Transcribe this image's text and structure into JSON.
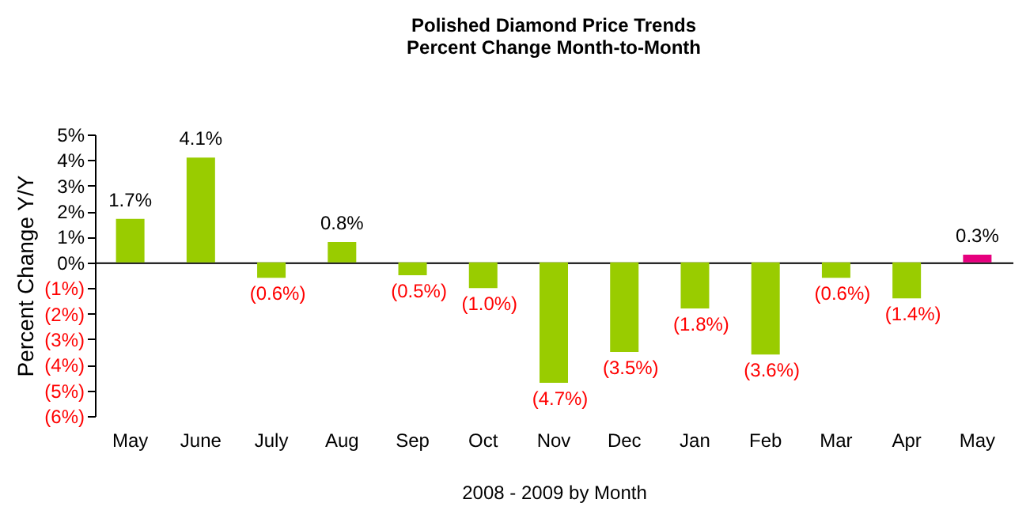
{
  "chart_data": {
    "type": "bar",
    "title": "Polished Diamond Price Trends",
    "subtitle": "Percent Change Month-to-Month",
    "xlabel": "2008 - 2009 by Month",
    "ylabel": "Percent Change Y/Y",
    "categories": [
      "May",
      "June",
      "July",
      "Aug",
      "Sep",
      "Oct",
      "Nov",
      "Dec",
      "Jan",
      "Feb",
      "Mar",
      "Apr",
      "May"
    ],
    "values": [
      1.7,
      4.1,
      -0.6,
      0.8,
      -0.5,
      -1.0,
      -4.7,
      -3.5,
      -1.8,
      -3.6,
      -0.6,
      -1.4,
      0.3
    ],
    "colors": [
      "#99cc00",
      "#99cc00",
      "#99cc00",
      "#99cc00",
      "#99cc00",
      "#99cc00",
      "#99cc00",
      "#99cc00",
      "#99cc00",
      "#99cc00",
      "#99cc00",
      "#99cc00",
      "#e6007e"
    ],
    "value_labels": [
      "1.7%",
      "4.1%",
      "(0.6%)",
      "0.8%",
      "(0.5%)",
      "(1.0%)",
      "(4.7%)",
      "(3.5%)",
      "(1.8%)",
      "(3.6%)",
      "(0.6%)",
      "(1.4%)",
      "0.3%"
    ],
    "ylim": [
      -6,
      5
    ],
    "yticks": [
      {
        "value": 5,
        "label": "5%"
      },
      {
        "value": 4,
        "label": "4%"
      },
      {
        "value": 3,
        "label": "3%"
      },
      {
        "value": 2,
        "label": "2%"
      },
      {
        "value": 1,
        "label": "1%"
      },
      {
        "value": 0,
        "label": "0%"
      },
      {
        "value": -1,
        "label": "(1%)"
      },
      {
        "value": -2,
        "label": "(2%)"
      },
      {
        "value": -3,
        "label": "(3%)"
      },
      {
        "value": -4,
        "label": "(4%)"
      },
      {
        "value": -5,
        "label": "(5%)"
      },
      {
        "value": -6,
        "label": "(6%)"
      }
    ],
    "data_labels": false
  }
}
